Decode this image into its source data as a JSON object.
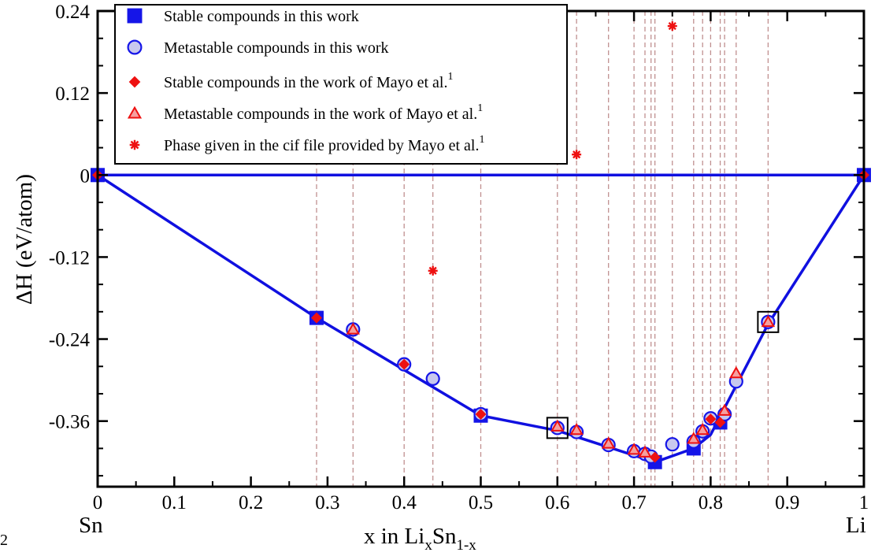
{
  "chart_data": {
    "type": "scatter",
    "title": "",
    "xlabel": {
      "base": "x in Li",
      "sub1": "x",
      "mid": "Sn",
      "sub2": "1-x"
    },
    "ylabel": "ΔH (eV/atom)",
    "xlim": [
      0,
      1
    ],
    "ylim": [
      -0.456,
      0.24
    ],
    "x_ticks": [
      0,
      0.1,
      0.2,
      0.3,
      0.4,
      0.5,
      0.6,
      0.7,
      0.8,
      0.9,
      1
    ],
    "x_tick_labels": [
      "0",
      "0.1",
      "0.2",
      "0.3",
      "0.4",
      "0.5",
      "0.6",
      "0.7",
      "0.8",
      "0.9",
      "1"
    ],
    "y_ticks": [
      0.24,
      0.12,
      0,
      -0.12,
      -0.24,
      -0.36
    ],
    "y_tick_labels": [
      "0.24",
      "0.12",
      "0",
      "-0.12",
      "-0.24",
      "-0.36"
    ],
    "x_end_labels": {
      "left": "Sn",
      "right": "Li"
    },
    "corner_text": "2",
    "grid": false,
    "legend_placement": "top-left",
    "reference_lines_x": [
      0.2857,
      0.3333,
      0.4,
      0.4375,
      0.5,
      0.6,
      0.625,
      0.6667,
      0.7,
      0.7143,
      0.7222,
      0.7273,
      0.75,
      0.7778,
      0.7895,
      0.8,
      0.8125,
      0.8182,
      0.8333,
      0.875
    ],
    "colors": {
      "hull_line": "#1010e0",
      "stable_marker": "#1515e8",
      "metastable_fill": "#c8c8ee",
      "metastable_edge": "#1515e8",
      "mayo_marker": "#ee1111",
      "reference_line": "#c09090",
      "box": "#000000"
    },
    "convex_hull": {
      "x": [
        0,
        0.2857,
        0.5,
        0.6,
        0.7273,
        0.7778,
        0.8,
        0.875,
        1
      ],
      "y": [
        0,
        -0.209,
        -0.352,
        -0.374,
        -0.42,
        -0.4,
        -0.38,
        -0.218,
        0
      ]
    },
    "zero_line": {
      "x": [
        0,
        1
      ],
      "y": [
        0,
        0
      ]
    },
    "series": [
      {
        "name": "Stable compounds in this work",
        "marker": "square",
        "x": [
          0,
          0.2857,
          0.5,
          0.7273,
          0.7778,
          0.8125,
          1
        ],
        "y": [
          0,
          -0.209,
          -0.352,
          -0.42,
          -0.4,
          -0.362,
          0
        ]
      },
      {
        "name": "Metastable compounds in this work",
        "marker": "circle",
        "x": [
          0.3333,
          0.4,
          0.4375,
          0.5,
          0.6,
          0.625,
          0.6667,
          0.7,
          0.7143,
          0.7222,
          0.75,
          0.7778,
          0.7895,
          0.8,
          0.8182,
          0.8333,
          0.875
        ],
        "y": [
          -0.226,
          -0.277,
          -0.298,
          -0.35,
          -0.37,
          -0.376,
          -0.395,
          -0.404,
          -0.408,
          -0.412,
          -0.394,
          -0.39,
          -0.375,
          -0.356,
          -0.35,
          -0.302,
          -0.215
        ]
      },
      {
        "name": "Stable compounds in the work of Mayo et al.",
        "legend_superscript": "1",
        "marker": "diamond",
        "x": [
          0,
          0.2857,
          0.4,
          0.5,
          0.7273,
          0.8,
          0.8125,
          1
        ],
        "y": [
          0,
          -0.209,
          -0.277,
          -0.35,
          -0.413,
          -0.357,
          -0.362,
          0
        ]
      },
      {
        "name": "Metastable compounds in the work of Mayo et al.",
        "legend_superscript": "1",
        "marker": "triangle",
        "x": [
          0.3333,
          0.6,
          0.625,
          0.6667,
          0.7,
          0.7143,
          0.7778,
          0.7895,
          0.8182,
          0.8333,
          0.875
        ],
        "y": [
          -0.226,
          -0.368,
          -0.373,
          -0.393,
          -0.402,
          -0.406,
          -0.386,
          -0.373,
          -0.345,
          -0.29,
          -0.215
        ]
      },
      {
        "name": "Phase given in the cif file provided by Mayo et al.",
        "legend_superscript": "1",
        "marker": "asterisk",
        "x": [
          0.4375,
          0.625,
          0.75
        ],
        "y": [
          -0.14,
          0.03,
          0.218
        ]
      }
    ],
    "boxed_points": [
      {
        "x": 0.6,
        "y": -0.37
      },
      {
        "x": 0.875,
        "y": -0.215
      }
    ]
  }
}
